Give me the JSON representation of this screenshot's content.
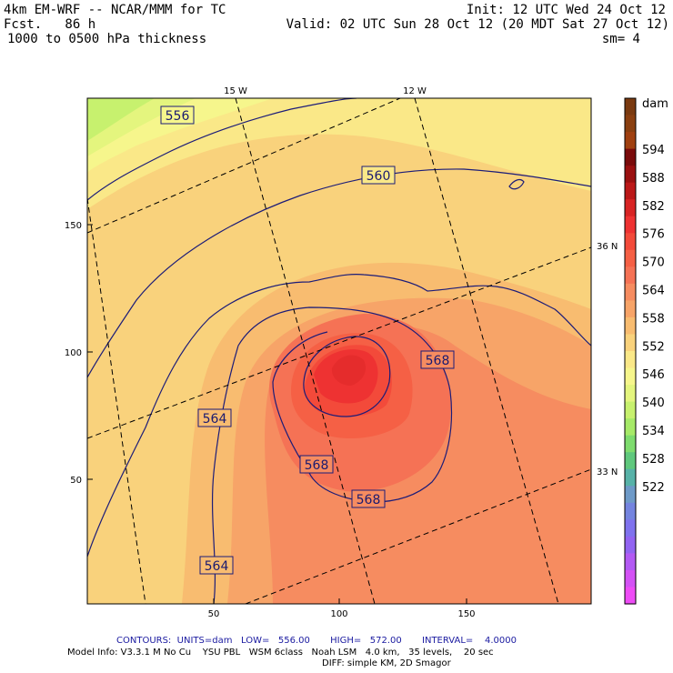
{
  "header": {
    "model": "4km EM-WRF -- NCAR/MMM for TC",
    "forecast": "Fcst.   86 h",
    "field": "1000 to 0500 hPa thickness",
    "init": "Init: 12 UTC Wed 24 Oct 12",
    "valid": "Valid: 02 UTC Sun 28 Oct 12 (20 MDT Sat 27 Oct 12)",
    "smoothing": "sm= 4"
  },
  "map": {
    "grid_x_ticks": [
      "50",
      "100",
      "150"
    ],
    "grid_y_ticks": [
      "50",
      "100",
      "150"
    ],
    "longitude_labels": [
      "15 W",
      "12 W"
    ],
    "latitude_labels": [
      "36 N",
      "33 N"
    ],
    "contour_labels": [
      "556",
      "560",
      "564",
      "564",
      "568",
      "568",
      "568"
    ]
  },
  "colorbar": {
    "unit": "dam",
    "labels": [
      "594",
      "588",
      "582",
      "576",
      "570",
      "564",
      "558",
      "552",
      "546",
      "540",
      "534",
      "528",
      "522"
    ],
    "colors": [
      "#7a3a10",
      "#8a3f10",
      "#a04010",
      "#7a0b0b",
      "#9a1010",
      "#bb1818",
      "#d82424",
      "#ee3232",
      "#f34a3a",
      "#f56045",
      "#f57255",
      "#f68c60",
      "#f7a468",
      "#f8bc70",
      "#f9d27c",
      "#fae888",
      "#f6f68c",
      "#e4f57e",
      "#c7f16e",
      "#a6ea68",
      "#7edc6e",
      "#5fc87d",
      "#57b2a8",
      "#6e9ac8",
      "#7484df",
      "#7f72ee",
      "#9264f2",
      "#b35af4",
      "#d452f5",
      "#ee4cf6"
    ]
  },
  "footer": {
    "contours": "CONTOURS:  UNITS=dam   LOW=   556.00       HIGH=   572.00       INTERVAL=    4.0000",
    "model_info": "Model Info: V3.3.1 M No Cu    YSU PBL   WSM 6class   Noah LSM   4.0 km,   35 levels,    20 sec",
    "diff": "DIFF: simple KM, 2D Smagor"
  }
}
